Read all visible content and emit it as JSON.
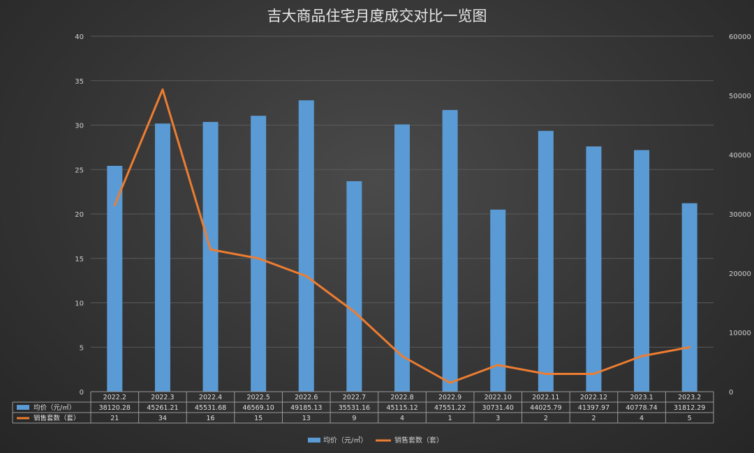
{
  "chart_data": {
    "type": "bar",
    "title": "吉大商品住宅月度成交对比一览图",
    "categories": [
      "2022.2",
      "2022.3",
      "2022.4",
      "2022.5",
      "2022.6",
      "2022.7",
      "2022.8",
      "2022.9",
      "2022.10",
      "2022.11",
      "2022.12",
      "2023.1",
      "2023.2"
    ],
    "series": [
      {
        "name": "均价（元/㎡）",
        "kind": "bar",
        "axis": "right",
        "color": "#5b9bd5",
        "values": [
          38120.28,
          45261.21,
          45531.68,
          46569.1,
          49185.13,
          35531.16,
          45115.12,
          47551.22,
          30731.4,
          44025.79,
          41397.97,
          40778.74,
          31812.29
        ],
        "labels": [
          "38120.28",
          "45261.21",
          "45531.68",
          "46569.10",
          "49185.13",
          "35531.16",
          "45115.12",
          "47551.22",
          "30731.40",
          "44025.79",
          "41397.97",
          "40778.74",
          "31812.29"
        ]
      },
      {
        "name": "销售套数（套）",
        "kind": "line",
        "axis": "left",
        "color": "#ed7d31",
        "values": [
          21,
          34,
          16,
          15,
          13,
          9,
          4,
          1,
          3,
          2,
          2,
          4,
          5
        ],
        "labels": [
          "21",
          "34",
          "16",
          "15",
          "13",
          "9",
          "4",
          "1",
          "3",
          "2",
          "2",
          "4",
          "5"
        ]
      }
    ],
    "y_left": {
      "range": [
        0,
        40
      ],
      "ticks": [
        "0",
        "5",
        "10",
        "15",
        "20",
        "25",
        "30",
        "35",
        "40"
      ]
    },
    "y_right": {
      "range": [
        0,
        60000
      ],
      "ticks": [
        "0",
        "10000",
        "20000",
        "30000",
        "40000",
        "50000",
        "60000"
      ]
    },
    "grid": true,
    "legend": "bottom"
  }
}
